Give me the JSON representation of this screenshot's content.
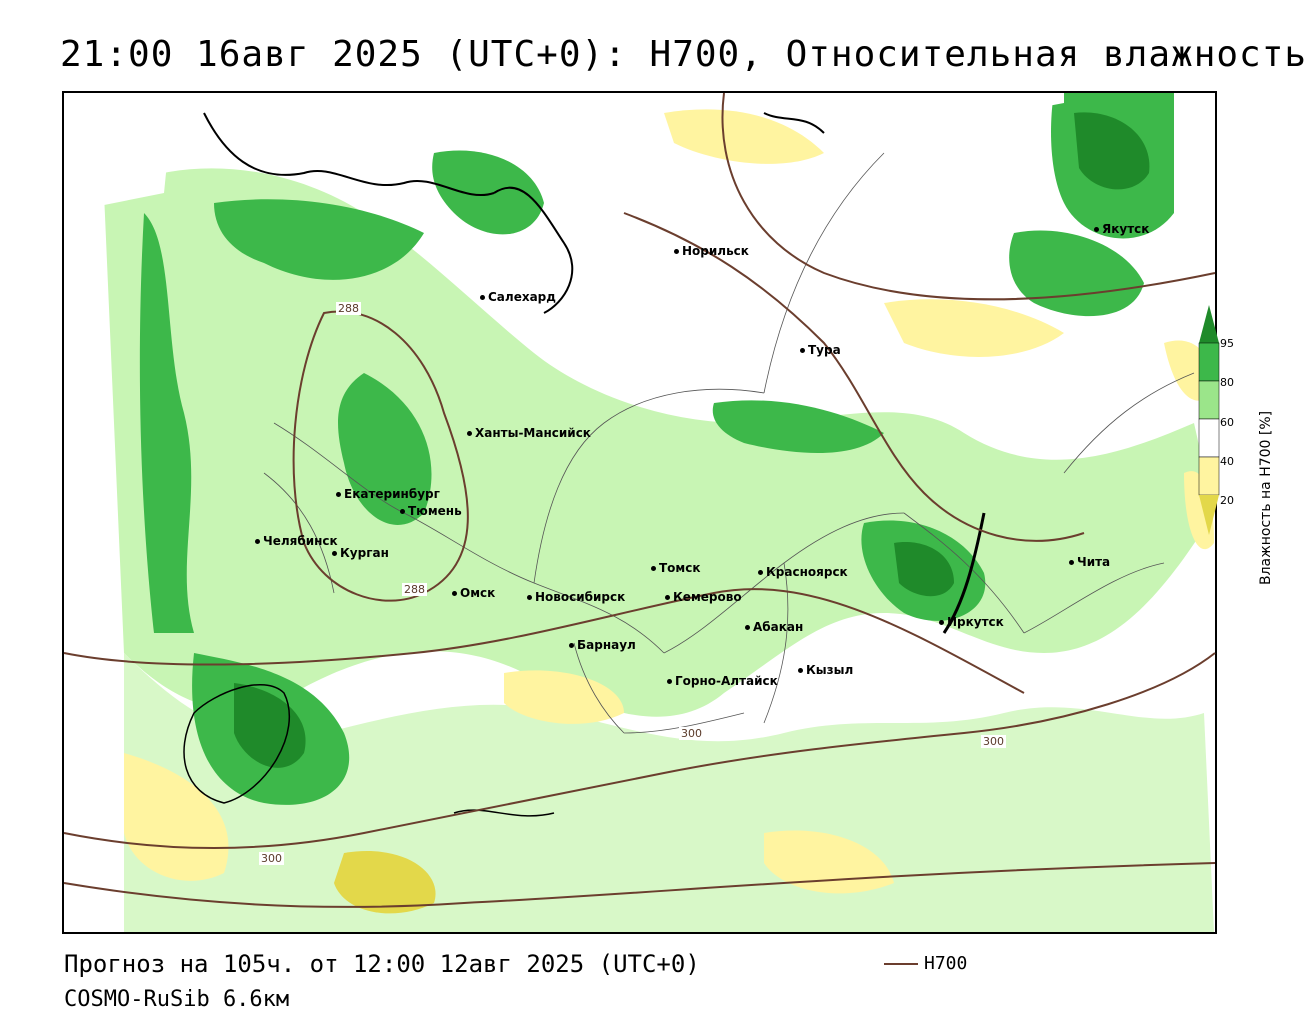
{
  "title": "21:00 16авг 2025 (UTC+0): H700, Относительная влажность",
  "footer": {
    "forecast": "Прогноз на 105ч. от 12:00 12авг 2025 (UTC+0)",
    "model": "COSMO-RuSib 6.6км",
    "legend_label": "H700"
  },
  "colorbar": {
    "title": "Влажность на H700 [%]",
    "ticks": [
      "95",
      "80",
      "60",
      "40",
      "20"
    ],
    "colors": [
      "#1f8a2a",
      "#3db84a",
      "#9be58a",
      "#ffffff",
      "#fff4a0",
      "#e3d84a"
    ]
  },
  "cities": [
    {
      "name": "Норильск"
    },
    {
      "name": "Якутск"
    },
    {
      "name": "Салехард"
    },
    {
      "name": "Тура"
    },
    {
      "name": "Ханты-Мансийск"
    },
    {
      "name": "Екатеринбург"
    },
    {
      "name": "Тюмень"
    },
    {
      "name": "Челябинск"
    },
    {
      "name": "Курган"
    },
    {
      "name": "Омск"
    },
    {
      "name": "Томск"
    },
    {
      "name": "Новосибирск"
    },
    {
      "name": "Кемерово"
    },
    {
      "name": "Красноярск"
    },
    {
      "name": "Абакан"
    },
    {
      "name": "Барнаул"
    },
    {
      "name": "Горно-Алтайск"
    },
    {
      "name": "Кызыл"
    },
    {
      "name": "Иркутск"
    },
    {
      "name": "Чита"
    }
  ],
  "isolines": [
    "288",
    "288",
    "300",
    "300",
    "300"
  ]
}
